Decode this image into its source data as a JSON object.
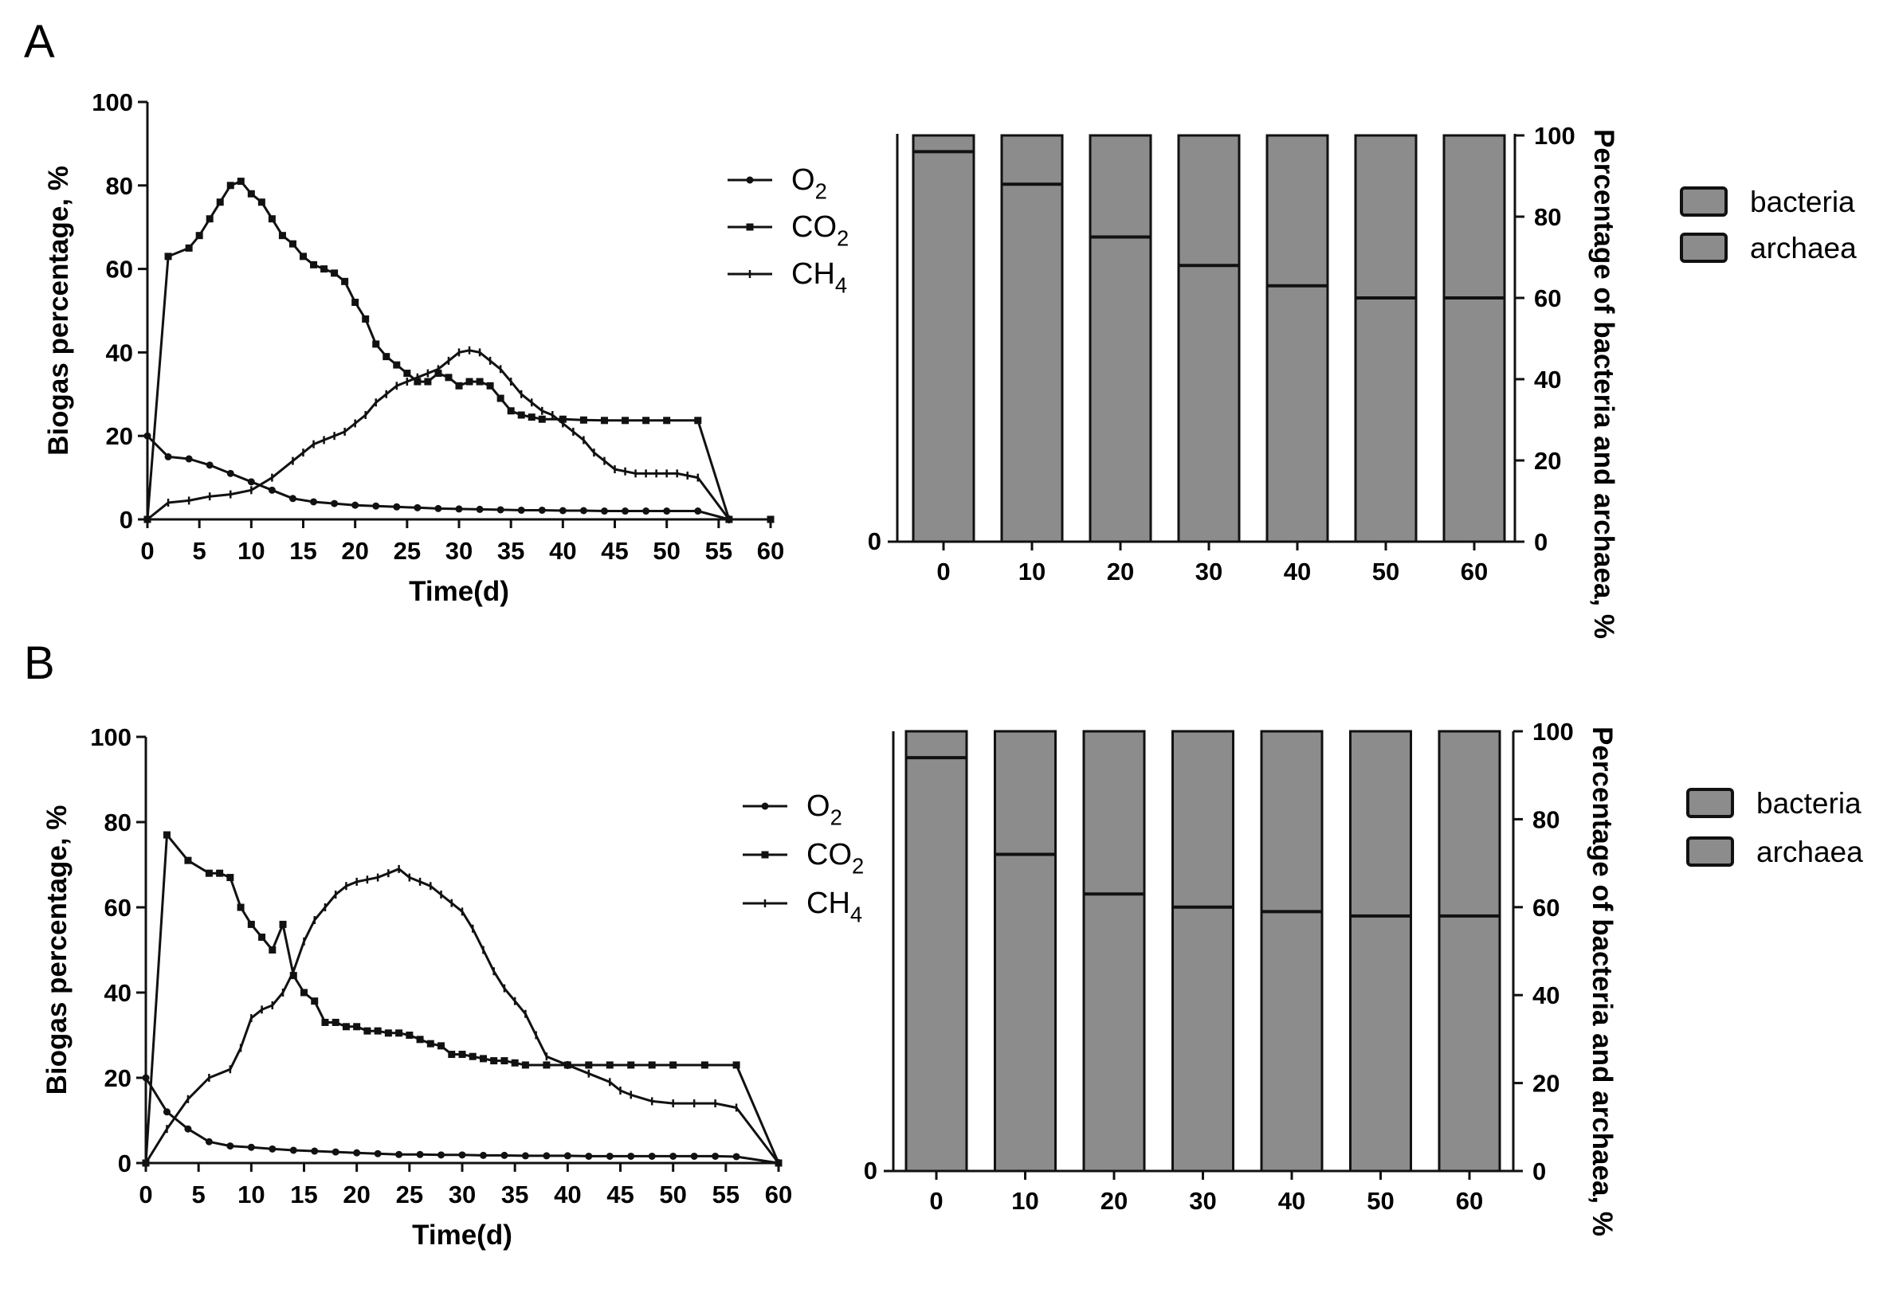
{
  "colors": {
    "axis": "#111111",
    "bar_fill": "#8c8c8c",
    "background": "#ffffff"
  },
  "panels": [
    {
      "label": "A"
    },
    {
      "label": "B"
    }
  ],
  "chart_data": [
    {
      "type": "line",
      "panel": "A",
      "title": "",
      "xlabel": "Time(d)",
      "ylabel": "Biogas percentage, %",
      "xlim": [
        0,
        60
      ],
      "ylim": [
        0,
        100
      ],
      "xticks": [
        0,
        5,
        10,
        15,
        20,
        25,
        30,
        35,
        40,
        45,
        50,
        55,
        60
      ],
      "yticks": [
        0,
        20,
        40,
        60,
        80,
        100
      ],
      "legend": {
        "placement": "right",
        "entries": [
          {
            "base": "O",
            "sub": "2"
          },
          {
            "base": "CO",
            "sub": "2"
          },
          {
            "base": "CH",
            "sub": "4"
          }
        ]
      },
      "series": [
        {
          "name": "O2",
          "marker": "dot",
          "x": [
            0,
            2,
            4,
            6,
            8,
            10,
            12,
            14,
            16,
            18,
            20,
            22,
            24,
            26,
            28,
            30,
            32,
            34,
            36,
            38,
            40,
            42,
            44,
            46,
            48,
            50,
            53,
            56
          ],
          "y": [
            20,
            15,
            14.5,
            13,
            11,
            9,
            7,
            5,
            4.2,
            3.8,
            3.4,
            3.2,
            3,
            2.8,
            2.6,
            2.5,
            2.4,
            2.3,
            2.2,
            2.2,
            2.1,
            2.1,
            2,
            2,
            2,
            2,
            2,
            0
          ]
        },
        {
          "name": "CO2",
          "marker": "square",
          "x": [
            0,
            2,
            4,
            5,
            6,
            7,
            8,
            9,
            10,
            11,
            12,
            13,
            14,
            15,
            16,
            17,
            18,
            19,
            20,
            21,
            22,
            23,
            24,
            25,
            26,
            27,
            28,
            29,
            30,
            31,
            32,
            33,
            34,
            35,
            36,
            37,
            38,
            40,
            42,
            44,
            46,
            48,
            50,
            53,
            56,
            60
          ],
          "y": [
            0,
            63,
            65,
            68,
            72,
            76,
            80,
            81,
            78,
            76,
            72,
            68,
            66,
            63,
            61,
            60,
            59,
            57,
            52,
            48,
            42,
            39,
            37,
            35,
            33,
            33,
            35,
            34,
            32,
            33,
            33,
            32,
            29,
            26,
            25,
            24.5,
            24,
            24,
            23.8,
            23.7,
            23.7,
            23.7,
            23.7,
            23.7,
            0,
            0
          ]
        },
        {
          "name": "CH4",
          "marker": "tick",
          "x": [
            0,
            2,
            4,
            6,
            8,
            10,
            12,
            14,
            15,
            16,
            17,
            18,
            19,
            20,
            21,
            22,
            23,
            24,
            25,
            26,
            27,
            28,
            29,
            30,
            31,
            32,
            33,
            34,
            35,
            36,
            37,
            38,
            39,
            40,
            41,
            42,
            43,
            44,
            45,
            46,
            47,
            48,
            49,
            50,
            51,
            52,
            53,
            56
          ],
          "y": [
            0,
            4,
            4.5,
            5.5,
            6,
            7,
            10,
            14,
            16,
            18,
            19,
            20,
            21,
            23,
            25,
            28,
            30,
            32,
            33,
            34,
            35,
            36,
            38,
            40,
            40.5,
            40,
            38,
            36,
            33,
            30,
            28,
            26,
            25,
            23,
            21,
            19,
            16,
            14,
            12,
            11.5,
            11,
            11,
            11,
            11,
            11,
            10.5,
            10,
            0
          ]
        }
      ]
    },
    {
      "type": "bar",
      "panel": "A",
      "title": "",
      "xlabel": "",
      "ylabel": "Percentage of bacteria and archaea, %",
      "categories": [
        "0",
        "10",
        "20",
        "30",
        "40",
        "50",
        "60"
      ],
      "ylim": [
        0,
        100
      ],
      "yticks": [
        0,
        20,
        40,
        60,
        80,
        100
      ],
      "y_axis_side": "right",
      "stacked": true,
      "legend": {
        "placement": "right",
        "entries": [
          "bacteria",
          "archaea"
        ]
      },
      "series": [
        {
          "name": "bacteria",
          "values": [
            96,
            88,
            75,
            68,
            63,
            60,
            60
          ]
        },
        {
          "name": "archaea",
          "values": [
            4,
            12,
            25,
            32,
            37,
            40,
            40
          ]
        }
      ]
    },
    {
      "type": "line",
      "panel": "B",
      "title": "",
      "xlabel": "Time(d)",
      "ylabel": "Biogas percentage, %",
      "xlim": [
        0,
        60
      ],
      "ylim": [
        0,
        100
      ],
      "xticks": [
        0,
        5,
        10,
        15,
        20,
        25,
        30,
        35,
        40,
        45,
        50,
        55,
        60
      ],
      "yticks": [
        0,
        20,
        40,
        60,
        80,
        100
      ],
      "legend": {
        "placement": "right",
        "entries": [
          {
            "base": "O",
            "sub": "2"
          },
          {
            "base": "CO",
            "sub": "2"
          },
          {
            "base": "CH",
            "sub": "4"
          }
        ]
      },
      "series": [
        {
          "name": "O2",
          "marker": "dot",
          "x": [
            0,
            2,
            4,
            6,
            8,
            10,
            12,
            14,
            16,
            18,
            20,
            22,
            24,
            26,
            28,
            30,
            32,
            34,
            36,
            38,
            40,
            42,
            44,
            46,
            48,
            50,
            52,
            54,
            56,
            60
          ],
          "y": [
            20,
            12,
            8,
            5,
            4,
            3.7,
            3.3,
            3,
            2.8,
            2.6,
            2.4,
            2.2,
            2,
            2,
            1.9,
            1.9,
            1.8,
            1.8,
            1.7,
            1.7,
            1.7,
            1.6,
            1.6,
            1.6,
            1.6,
            1.6,
            1.6,
            1.6,
            1.5,
            0
          ]
        },
        {
          "name": "CO2",
          "marker": "square",
          "x": [
            0,
            2,
            4,
            6,
            7,
            8,
            9,
            10,
            11,
            12,
            13,
            14,
            15,
            16,
            17,
            18,
            19,
            20,
            21,
            22,
            23,
            24,
            25,
            26,
            27,
            28,
            29,
            30,
            31,
            32,
            33,
            34,
            35,
            36,
            38,
            40,
            42,
            44,
            46,
            48,
            50,
            53,
            56,
            60
          ],
          "y": [
            0,
            77,
            71,
            68,
            68,
            67,
            60,
            56,
            53,
            50,
            56,
            44,
            40,
            38,
            33,
            33,
            32,
            32,
            31,
            31,
            30.5,
            30.5,
            30,
            29,
            28,
            27.5,
            25.5,
            25.5,
            25,
            24.5,
            24,
            24,
            23.5,
            23,
            23,
            23,
            23,
            23,
            23,
            23,
            23,
            23,
            23,
            0
          ]
        },
        {
          "name": "CH4",
          "marker": "tick",
          "x": [
            0,
            2,
            4,
            6,
            8,
            9,
            10,
            11,
            12,
            13,
            14,
            15,
            16,
            17,
            18,
            19,
            20,
            21,
            22,
            23,
            24,
            25,
            26,
            27,
            28,
            29,
            30,
            31,
            32,
            33,
            34,
            35,
            36,
            37,
            38,
            40,
            42,
            44,
            45,
            46,
            48,
            50,
            52,
            54,
            56,
            60
          ],
          "y": [
            0,
            8,
            15,
            20,
            22,
            27,
            34,
            36,
            37,
            40,
            45,
            52,
            57,
            60,
            63,
            65,
            66,
            66.5,
            67,
            68,
            69,
            67,
            66,
            65,
            63,
            61,
            59,
            55,
            50,
            45,
            41,
            38,
            35,
            30,
            25,
            23,
            21,
            19,
            17,
            16,
            14.5,
            14,
            14,
            14,
            13,
            0
          ]
        }
      ]
    },
    {
      "type": "bar",
      "panel": "B",
      "title": "",
      "xlabel": "",
      "ylabel": "Percentage of bacteria and archaea, %",
      "categories": [
        "0",
        "10",
        "20",
        "30",
        "40",
        "50",
        "60"
      ],
      "ylim": [
        0,
        100
      ],
      "yticks": [
        0,
        20,
        40,
        60,
        80,
        100
      ],
      "y_axis_side": "right",
      "stacked": true,
      "legend": {
        "placement": "right",
        "entries": [
          "bacteria",
          "archaea"
        ]
      },
      "series": [
        {
          "name": "bacteria",
          "values": [
            94,
            72,
            63,
            60,
            59,
            58,
            58
          ]
        },
        {
          "name": "archaea",
          "values": [
            6,
            28,
            37,
            40,
            41,
            42,
            42
          ]
        }
      ]
    }
  ]
}
